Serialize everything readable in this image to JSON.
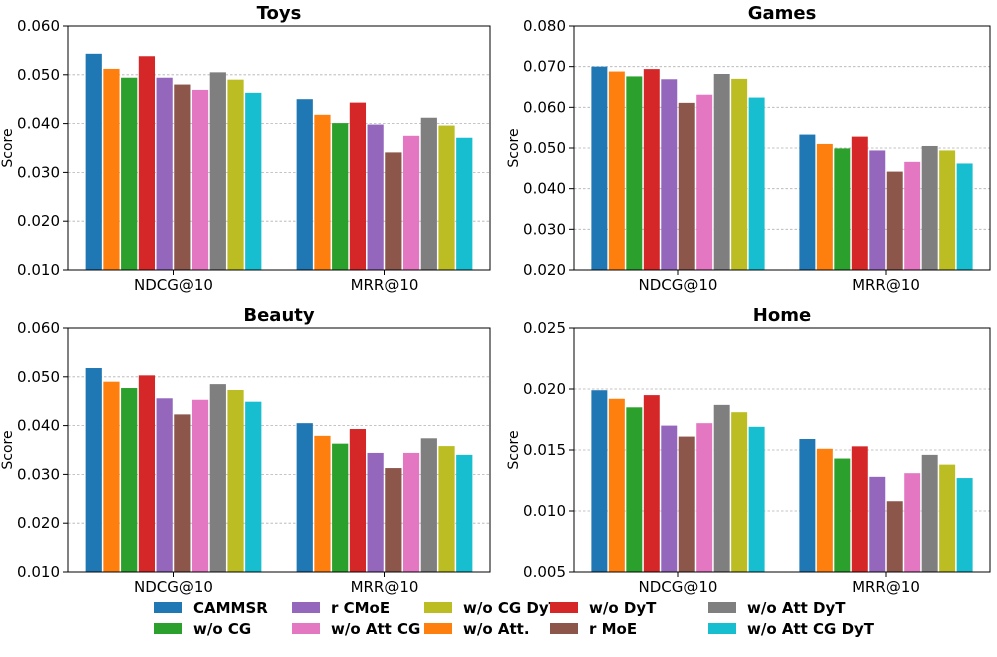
{
  "figure": {
    "series_names": [
      "CAMMSR",
      "w/o Att.",
      "w/o CG",
      "w/o DyT",
      "r CMoE",
      "r MoE",
      "w/o Att CG",
      "w/o Att DyT",
      "w/o CG DyT",
      "w/o Att CG DyT"
    ],
    "series_colors": [
      "#1f77b4",
      "#ff7f0e",
      "#2ca02c",
      "#d62728",
      "#9467bd",
      "#8c564b",
      "#e377c2",
      "#7f7f7f",
      "#bcbd22",
      "#17becf"
    ],
    "legend_order": [
      0,
      2,
      4,
      6,
      8,
      1,
      3,
      5,
      7,
      9
    ]
  },
  "chart_data": [
    {
      "type": "bar",
      "title": "Toys",
      "categories": [
        "NDCG@10",
        "MRR@10"
      ],
      "ylabel": "Score",
      "ylim": [
        0.01,
        0.06
      ],
      "yticks": [
        "0.010",
        "0.020",
        "0.030",
        "0.040",
        "0.050",
        "0.060"
      ],
      "grid": true,
      "series": [
        {
          "name": "CAMMSR",
          "values": [
            0.0543,
            0.045
          ]
        },
        {
          "name": "w/o Att.",
          "values": [
            0.0512,
            0.0418
          ]
        },
        {
          "name": "w/o CG",
          "values": [
            0.0494,
            0.0401
          ]
        },
        {
          "name": "w/o DyT",
          "values": [
            0.0538,
            0.0443
          ]
        },
        {
          "name": "r CMoE",
          "values": [
            0.0494,
            0.0398
          ]
        },
        {
          "name": "r MoE",
          "values": [
            0.048,
            0.0341
          ]
        },
        {
          "name": "w/o Att CG",
          "values": [
            0.0469,
            0.0375
          ]
        },
        {
          "name": "w/o Att DyT",
          "values": [
            0.0505,
            0.0412
          ]
        },
        {
          "name": "w/o CG DyT",
          "values": [
            0.049,
            0.0396
          ]
        },
        {
          "name": "w/o Att CG DyT",
          "values": [
            0.0463,
            0.0371
          ]
        }
      ]
    },
    {
      "type": "bar",
      "title": "Games",
      "categories": [
        "NDCG@10",
        "MRR@10"
      ],
      "ylabel": "Score",
      "ylim": [
        0.02,
        0.08
      ],
      "yticks": [
        "0.020",
        "0.030",
        "0.040",
        "0.050",
        "0.060",
        "0.070",
        "0.080"
      ],
      "grid": true,
      "series": [
        {
          "name": "CAMMSR",
          "values": [
            0.07,
            0.0533
          ]
        },
        {
          "name": "w/o Att.",
          "values": [
            0.0688,
            0.051
          ]
        },
        {
          "name": "w/o CG",
          "values": [
            0.0676,
            0.0499
          ]
        },
        {
          "name": "w/o DyT",
          "values": [
            0.0694,
            0.0528
          ]
        },
        {
          "name": "r CMoE",
          "values": [
            0.0669,
            0.0494
          ]
        },
        {
          "name": "r MoE",
          "values": [
            0.0611,
            0.0442
          ]
        },
        {
          "name": "w/o Att CG",
          "values": [
            0.0631,
            0.0466
          ]
        },
        {
          "name": "w/o Att DyT",
          "values": [
            0.0682,
            0.0505
          ]
        },
        {
          "name": "w/o CG DyT",
          "values": [
            0.067,
            0.0494
          ]
        },
        {
          "name": "w/o Att CG DyT",
          "values": [
            0.0624,
            0.0462
          ]
        }
      ]
    },
    {
      "type": "bar",
      "title": "Beauty",
      "categories": [
        "NDCG@10",
        "MRR@10"
      ],
      "ylabel": "Score",
      "ylim": [
        0.01,
        0.06
      ],
      "yticks": [
        "0.010",
        "0.020",
        "0.030",
        "0.040",
        "0.050",
        "0.060"
      ],
      "grid": true,
      "series": [
        {
          "name": "CAMMSR",
          "values": [
            0.0518,
            0.0405
          ]
        },
        {
          "name": "w/o Att.",
          "values": [
            0.049,
            0.0379
          ]
        },
        {
          "name": "w/o CG",
          "values": [
            0.0477,
            0.0363
          ]
        },
        {
          "name": "w/o DyT",
          "values": [
            0.0503,
            0.0393
          ]
        },
        {
          "name": "r CMoE",
          "values": [
            0.0456,
            0.0344
          ]
        },
        {
          "name": "r MoE",
          "values": [
            0.0423,
            0.0313
          ]
        },
        {
          "name": "w/o Att CG",
          "values": [
            0.0453,
            0.0344
          ]
        },
        {
          "name": "w/o Att DyT",
          "values": [
            0.0485,
            0.0374
          ]
        },
        {
          "name": "w/o CG DyT",
          "values": [
            0.0473,
            0.0358
          ]
        },
        {
          "name": "w/o Att CG DyT",
          "values": [
            0.0449,
            0.034
          ]
        }
      ]
    },
    {
      "type": "bar",
      "title": "Home",
      "categories": [
        "NDCG@10",
        "MRR@10"
      ],
      "ylabel": "Score",
      "ylim": [
        0.005,
        0.025
      ],
      "yticks": [
        "0.005",
        "0.010",
        "0.015",
        "0.020",
        "0.025"
      ],
      "grid": true,
      "series": [
        {
          "name": "CAMMSR",
          "values": [
            0.0199,
            0.0159
          ]
        },
        {
          "name": "w/o Att.",
          "values": [
            0.0192,
            0.0151
          ]
        },
        {
          "name": "w/o CG",
          "values": [
            0.0185,
            0.0143
          ]
        },
        {
          "name": "w/o DyT",
          "values": [
            0.0195,
            0.0153
          ]
        },
        {
          "name": "r CMoE",
          "values": [
            0.017,
            0.0128
          ]
        },
        {
          "name": "r MoE",
          "values": [
            0.0161,
            0.0108
          ]
        },
        {
          "name": "w/o Att CG",
          "values": [
            0.0172,
            0.0131
          ]
        },
        {
          "name": "w/o Att DyT",
          "values": [
            0.0187,
            0.0146
          ]
        },
        {
          "name": "w/o CG DyT",
          "values": [
            0.0181,
            0.0138
          ]
        },
        {
          "name": "w/o Att CG DyT",
          "values": [
            0.0169,
            0.0127
          ]
        }
      ]
    }
  ]
}
